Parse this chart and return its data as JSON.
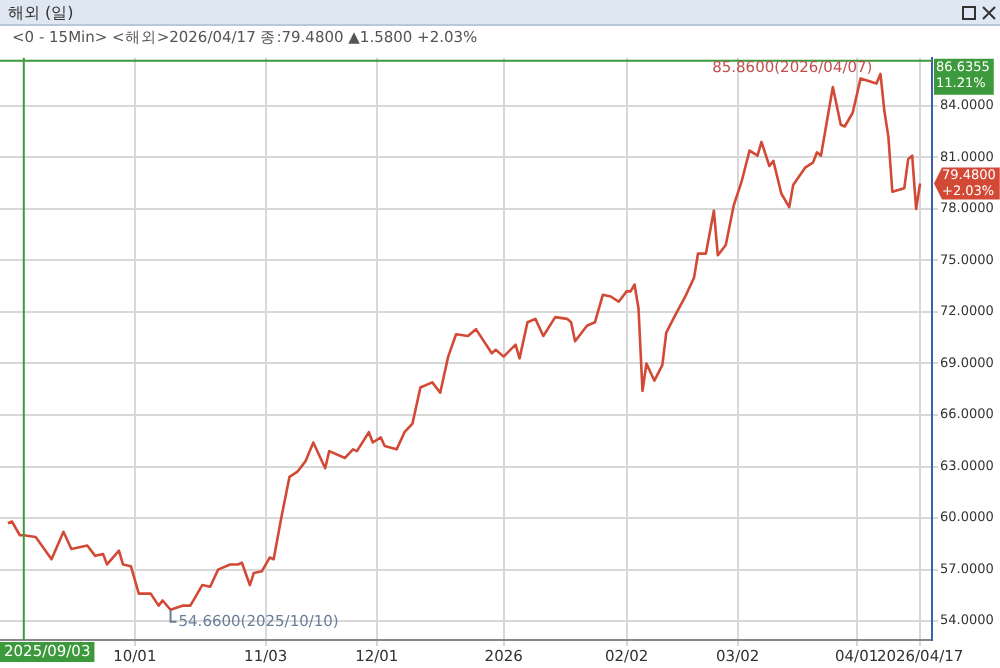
{
  "chart_data": {
    "type": "line",
    "title": "해외 (일)",
    "subtitle": "<0 - 15Min> <해외>2026/04/17 종:79.4800 ▲1.5800 +2.03%",
    "x": [
      "2025-08-30",
      "2025-08-31",
      "2025-09-02",
      "2025-09-03",
      "2025-09-06",
      "2025-09-10",
      "2025-09-13",
      "2025-09-15",
      "2025-09-19",
      "2025-09-21",
      "2025-09-23",
      "2025-09-24",
      "2025-09-27",
      "2025-09-28",
      "2025-09-30",
      "2025-10-02",
      "2025-10-05",
      "2025-10-07",
      "2025-10-08",
      "2025-10-10",
      "2025-10-13",
      "2025-10-15",
      "2025-10-18",
      "2025-10-20",
      "2025-10-22",
      "2025-10-25",
      "2025-10-27",
      "2025-10-28",
      "2025-10-30",
      "2025-10-31",
      "2025-11-02",
      "2025-11-04",
      "2025-11-05",
      "2025-11-07",
      "2025-11-09",
      "2025-11-11",
      "2025-11-13",
      "2025-11-15",
      "2025-11-18",
      "2025-11-19",
      "2025-11-23",
      "2025-11-25",
      "2025-11-26",
      "2025-11-29",
      "2025-11-30",
      "2025-12-02",
      "2025-12-03",
      "2025-12-06",
      "2025-12-08",
      "2025-12-10",
      "2025-12-12",
      "2025-12-15",
      "2025-12-17",
      "2025-12-19",
      "2025-12-21",
      "2025-12-24",
      "2025-12-26",
      "2025-12-30",
      "2025-12-31",
      "2026-01-02",
      "2026-01-05",
      "2026-01-06",
      "2026-01-08",
      "2026-01-10",
      "2026-01-12",
      "2026-01-15",
      "2026-01-18",
      "2026-01-19",
      "2026-01-20",
      "2026-01-23",
      "2026-01-25",
      "2026-01-27",
      "2026-01-29",
      "2026-01-31",
      "2026-02-02",
      "2026-02-03",
      "2026-02-04",
      "2026-02-05",
      "2026-02-06",
      "2026-02-07",
      "2026-02-09",
      "2026-02-11",
      "2026-02-12",
      "2026-02-14",
      "2026-02-17",
      "2026-02-19",
      "2026-02-20",
      "2026-02-22",
      "2026-02-24",
      "2026-02-25",
      "2026-02-27",
      "2026-03-01",
      "2026-03-03",
      "2026-03-05",
      "2026-03-07",
      "2026-03-08",
      "2026-03-10",
      "2026-03-11",
      "2026-03-13",
      "2026-03-15",
      "2026-03-16",
      "2026-03-19",
      "2026-03-21",
      "2026-03-22",
      "2026-03-23",
      "2026-03-26",
      "2026-03-28",
      "2026-03-29",
      "2026-03-31",
      "2026-04-02",
      "2026-04-06",
      "2026-04-07",
      "2026-04-08",
      "2026-04-09",
      "2026-04-10",
      "2026-04-13",
      "2026-04-14",
      "2026-04-15",
      "2026-04-16",
      "2026-04-17"
    ],
    "series": [
      {
        "color": "#d24a36",
        "values": [
          59.7,
          59.8,
          59.0,
          59.0,
          58.9,
          57.6,
          59.2,
          58.2,
          58.4,
          57.8,
          57.9,
          57.3,
          58.1,
          57.3,
          57.2,
          55.6,
          55.6,
          54.9,
          55.2,
          54.66,
          54.9,
          54.9,
          56.1,
          56.0,
          57.0,
          57.3,
          57.3,
          57.4,
          56.1,
          56.8,
          56.9,
          57.7,
          57.6,
          60.1,
          62.4,
          62.7,
          63.3,
          64.4,
          62.9,
          63.9,
          63.5,
          64.0,
          63.9,
          65.0,
          64.4,
          64.7,
          64.2,
          64.0,
          65.0,
          65.5,
          67.6,
          67.9,
          67.3,
          69.4,
          70.7,
          70.6,
          71.0,
          69.6,
          69.8,
          69.4,
          70.1,
          69.3,
          71.4,
          71.6,
          70.6,
          71.7,
          71.6,
          71.4,
          70.3,
          71.2,
          71.4,
          73.0,
          72.9,
          72.6,
          73.2,
          73.2,
          73.6,
          72.2,
          67.4,
          69.0,
          68.0,
          68.9,
          70.8,
          71.7,
          73.0,
          74.0,
          75.4,
          75.4,
          77.9,
          75.3,
          75.9,
          78.2,
          79.6,
          81.4,
          81.1,
          81.9,
          80.5,
          80.8,
          78.9,
          78.1,
          79.4,
          80.4,
          80.7,
          81.3,
          81.1,
          85.1,
          82.9,
          82.8,
          83.6,
          85.6,
          85.3,
          85.86,
          83.7,
          82.2,
          79.0,
          79.2,
          80.9,
          81.1,
          78.0,
          79.48
        ]
      }
    ],
    "xlim": [
      "2025-08-28",
      "2026-04-20"
    ],
    "xticks": [
      {
        "value": "2025-10-01",
        "label": "10/01"
      },
      {
        "value": "2025-11-03",
        "label": "11/03"
      },
      {
        "value": "2025-12-01",
        "label": "12/01"
      },
      {
        "value": "2026-01-02",
        "label": "2026"
      },
      {
        "value": "2026-02-02",
        "label": "02/02"
      },
      {
        "value": "2026-03-02",
        "label": "03/02"
      },
      {
        "value": "2026-04-01",
        "label": "04/01"
      },
      {
        "value": "2026-04-17",
        "label": "2026/04/17"
      }
    ],
    "ylim": [
      52.9,
      86.8
    ],
    "yticks": [
      {
        "value": 54,
        "label": "54.0000"
      },
      {
        "value": 57,
        "label": "57.0000"
      },
      {
        "value": 60,
        "label": "60.0000"
      },
      {
        "value": 63,
        "label": "63.0000"
      },
      {
        "value": 66,
        "label": "66.0000"
      },
      {
        "value": 69,
        "label": "69.0000"
      },
      {
        "value": 72,
        "label": "72.0000"
      },
      {
        "value": 75,
        "label": "75.0000"
      },
      {
        "value": 78,
        "label": "78.0000"
      },
      {
        "value": 81,
        "label": "81.0000"
      },
      {
        "value": 84,
        "label": "84.0000"
      }
    ],
    "ref_lines": [
      {
        "axis": "x",
        "value": "2025-09-03",
        "label": "2025/09/03",
        "color": "#3c9a3c"
      },
      {
        "axis": "y",
        "value": 86.6355,
        "label": "86.6355 11.21%",
        "color": "#3c9a3c"
      }
    ],
    "annotations": [
      {
        "text": "85.8600(2026/04/07)",
        "x": "2026-04-07",
        "y": 85.86
      },
      {
        "text": "54.6600(2025/10/10)",
        "x": "2025-10-10",
        "y": 54.66
      },
      {
        "text": "79.4800 +2.03%",
        "x": "2026-04-17",
        "y": 79.48
      }
    ],
    "grid": true,
    "legend": false,
    "marker": "none",
    "line_style": "solid"
  }
}
